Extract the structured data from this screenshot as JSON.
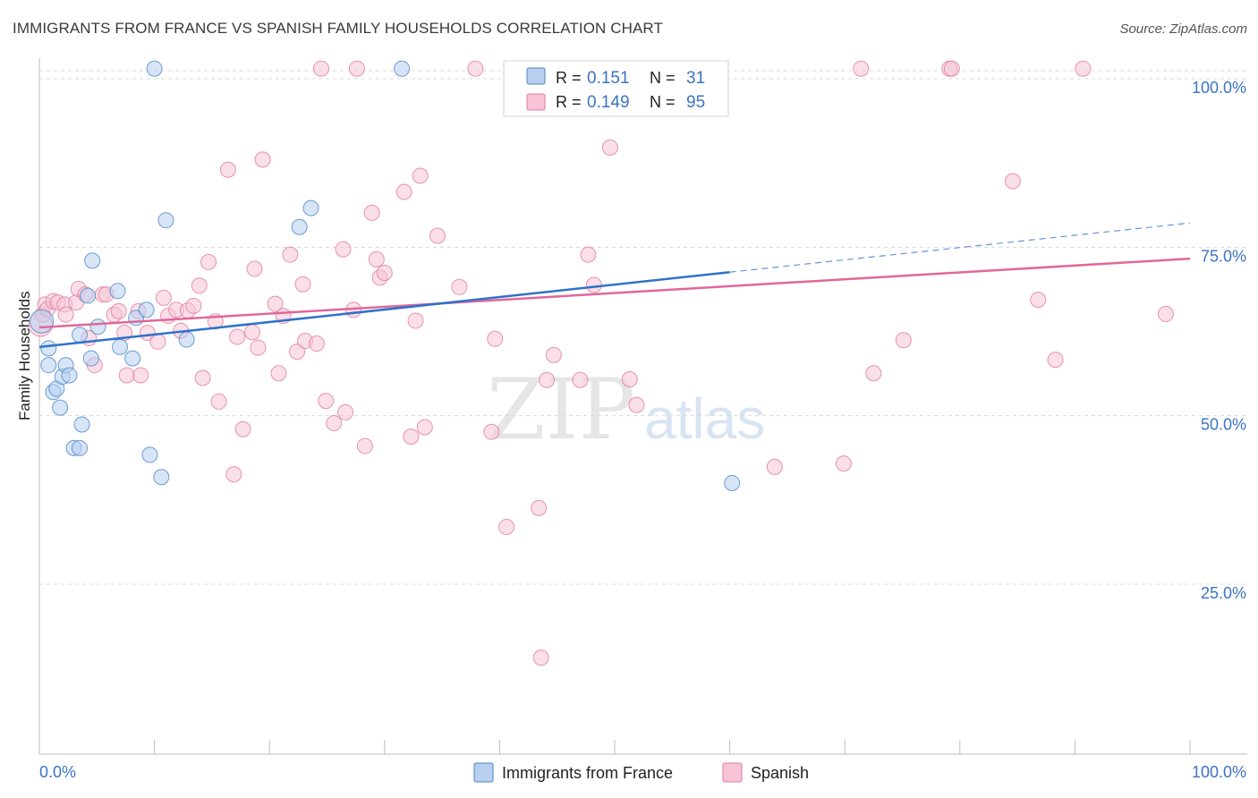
{
  "title": "IMMIGRANTS FROM FRANCE VS SPANISH FAMILY HOUSEHOLDS CORRELATION CHART",
  "source": "Source: ZipAtlas.com",
  "watermark": {
    "zip": "ZIP",
    "atlas": "atlas"
  },
  "colors": {
    "france": "#4a86c8",
    "france_fill": "#b8d0ef",
    "france_line": "#2f72c9",
    "spanish": "#e27aa0",
    "spanish_fill": "#f6c4d6",
    "spanish_line": "#e0679a",
    "axis_label": "#3b73c3",
    "grid": "#d8d8d8"
  },
  "legend": {
    "r_label": "R =",
    "n_label": "N =",
    "rows": [
      {
        "series": "france",
        "r": "0.151",
        "n": "31"
      },
      {
        "series": "spanish",
        "r": "0.149",
        "n": "95"
      }
    ]
  },
  "bottom_legend": [
    "Immigrants from France",
    "Spanish"
  ],
  "chart_data": {
    "type": "scatter",
    "title": "IMMIGRANTS FROM FRANCE VS SPANISH FAMILY HOUSEHOLDS CORRELATION CHART",
    "xlabel": "",
    "ylabel": "Family Households",
    "xlim": [
      0,
      100
    ],
    "ylim": [
      0,
      105
    ],
    "x_tick_labels": [
      "0.0%",
      "100.0%"
    ],
    "y_ticks": [
      25,
      50,
      75,
      100
    ],
    "y_tick_labels": [
      "25.0%",
      "50.0%",
      "75.0%",
      "100.0%"
    ],
    "grid": true,
    "series": [
      {
        "name": "Immigrants from France",
        "key": "france",
        "trend": {
          "x0": 0,
          "y0": 60.2,
          "x1": 60,
          "y1": 71.3,
          "dash_to_x": 100,
          "dash_to_y": 78.6
        },
        "points": [
          [
            10,
            101.5
          ],
          [
            31.5,
            101.5
          ],
          [
            0.2,
            64
          ],
          [
            0.8,
            60
          ],
          [
            0.8,
            57.5
          ],
          [
            1.2,
            53.5
          ],
          [
            1.5,
            54
          ],
          [
            1.8,
            51.2
          ],
          [
            2,
            55.8
          ],
          [
            2.3,
            57.5
          ],
          [
            2.6,
            56
          ],
          [
            3,
            45.2
          ],
          [
            3.5,
            45.2
          ],
          [
            3.7,
            48.7
          ],
          [
            3.5,
            62
          ],
          [
            4.2,
            67.8
          ],
          [
            4.5,
            58.5
          ],
          [
            4.6,
            73
          ],
          [
            5.1,
            63.2
          ],
          [
            6.8,
            68.5
          ],
          [
            7,
            60.2
          ],
          [
            8.1,
            58.5
          ],
          [
            8.4,
            64.5
          ],
          [
            9.3,
            65.7
          ],
          [
            9.6,
            44.2
          ],
          [
            10.6,
            40.9
          ],
          [
            11,
            79
          ],
          [
            12.8,
            61.3
          ],
          [
            22.6,
            78
          ],
          [
            23.6,
            80.8
          ],
          [
            60.2,
            40
          ]
        ]
      },
      {
        "name": "Spanish",
        "key": "spanish",
        "trend": {
          "x0": 0,
          "y0": 63.1,
          "x1": 100,
          "y1": 73.3
        },
        "points": [
          [
            0.1,
            63.5
          ],
          [
            0.3,
            65
          ],
          [
            0.5,
            66.5
          ],
          [
            0.7,
            65.8
          ],
          [
            1.2,
            67
          ],
          [
            1.6,
            66.8
          ],
          [
            2.2,
            66.5
          ],
          [
            2.3,
            65
          ],
          [
            3.2,
            66.8
          ],
          [
            3.4,
            68.8
          ],
          [
            4,
            68
          ],
          [
            4.3,
            61.5
          ],
          [
            4.8,
            57.5
          ],
          [
            5.5,
            68
          ],
          [
            5.8,
            68
          ],
          [
            6.5,
            65
          ],
          [
            6.9,
            65.5
          ],
          [
            7.4,
            62.3
          ],
          [
            7.6,
            56
          ],
          [
            8.6,
            65.5
          ],
          [
            8.8,
            56
          ],
          [
            9.4,
            62.3
          ],
          [
            10.3,
            61
          ],
          [
            10.8,
            67.5
          ],
          [
            11.2,
            64.8
          ],
          [
            11.9,
            65.7
          ],
          [
            12.3,
            62.6
          ],
          [
            12.9,
            65.6
          ],
          [
            13.4,
            66.3
          ],
          [
            13.9,
            69.3
          ],
          [
            14.2,
            55.6
          ],
          [
            14.7,
            72.8
          ],
          [
            15.3,
            64
          ],
          [
            15.6,
            52.1
          ],
          [
            16.4,
            86.5
          ],
          [
            16.9,
            41.3
          ],
          [
            17.2,
            61.7
          ],
          [
            17.7,
            48
          ],
          [
            18.5,
            62.4
          ],
          [
            18.7,
            71.8
          ],
          [
            19,
            60.1
          ],
          [
            19.4,
            88
          ],
          [
            20.5,
            66.6
          ],
          [
            20.8,
            56.3
          ],
          [
            21.2,
            64.8
          ],
          [
            21.8,
            73.9
          ],
          [
            22.4,
            59.5
          ],
          [
            22.9,
            69.5
          ],
          [
            23.1,
            61.1
          ],
          [
            24.1,
            60.7
          ],
          [
            24.5,
            101.5
          ],
          [
            24.9,
            52.2
          ],
          [
            25.6,
            48.9
          ],
          [
            26.4,
            74.7
          ],
          [
            26.6,
            50.5
          ],
          [
            27.3,
            65.7
          ],
          [
            27.6,
            101.5
          ],
          [
            28.3,
            45.5
          ],
          [
            28.9,
            80.1
          ],
          [
            29.3,
            73.2
          ],
          [
            29.6,
            70.5
          ],
          [
            30,
            71.2
          ],
          [
            31.7,
            83.2
          ],
          [
            32.3,
            46.9
          ],
          [
            32.7,
            64.1
          ],
          [
            33.1,
            85.6
          ],
          [
            33.5,
            48.3
          ],
          [
            34.6,
            76.7
          ],
          [
            36.5,
            69.1
          ],
          [
            37.9,
            101.5
          ],
          [
            39.3,
            47.6
          ],
          [
            39.6,
            61.4
          ],
          [
            40.6,
            33.5
          ],
          [
            42.1,
            100.5
          ],
          [
            43.4,
            36.3
          ],
          [
            43.6,
            14.1
          ],
          [
            44.1,
            55.3
          ],
          [
            44.7,
            59
          ],
          [
            47,
            55.3
          ],
          [
            47.7,
            73.9
          ],
          [
            48.2,
            69.4
          ],
          [
            49.1,
            101.5
          ],
          [
            49.6,
            89.8
          ],
          [
            51.3,
            55.4
          ],
          [
            51.9,
            51.6
          ],
          [
            63.9,
            42.4
          ],
          [
            69.9,
            42.9
          ],
          [
            71.4,
            101.5
          ],
          [
            72.5,
            56.3
          ],
          [
            75.1,
            61.2
          ],
          [
            79.1,
            101.5
          ],
          [
            79.3,
            101.5
          ],
          [
            84.6,
            84.8
          ],
          [
            86.8,
            67.2
          ],
          [
            88.3,
            58.3
          ],
          [
            90.7,
            101.5
          ],
          [
            97.9,
            65.1
          ]
        ]
      }
    ]
  }
}
